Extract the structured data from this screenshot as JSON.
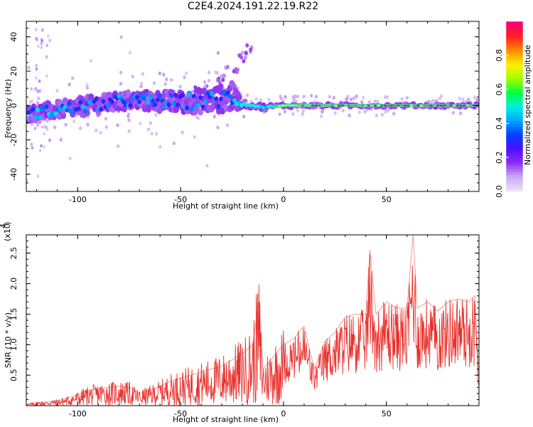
{
  "title": "C2E4.2024.191.22.19.R22",
  "colors": {
    "snr_line": "#e8322e",
    "frame": "#000000"
  },
  "chart_data": [
    {
      "type": "heatmap",
      "name": "spectrogram",
      "xlabel": "Height of straight line (km)",
      "ylabel": "Frequency (Hz)",
      "xlim": [
        -125,
        95
      ],
      "ylim": [
        -50,
        49
      ],
      "x_ticks": [
        -100,
        -50,
        0,
        50
      ],
      "y_ticks": [
        -40,
        -20,
        0,
        20,
        40
      ],
      "colorbar": {
        "label": "Normalized spectral amplitude",
        "range": [
          0,
          1
        ],
        "ticks": [
          "0.0",
          "0.2",
          "0.4",
          "0.6",
          "0.8"
        ],
        "tick_values": [
          0,
          0.2,
          0.4,
          0.6,
          0.8
        ],
        "colormap": [
          "#e8e0f8",
          "#c9a7f3",
          "#8b2cf0",
          "#4a10ff",
          "#0040ff",
          "#00a8ff",
          "#00f0e0",
          "#00ff40",
          "#a0ff00",
          "#fff000",
          "#ff9000",
          "#ff2020",
          "#ff0070"
        ]
      },
      "trend": [
        {
          "x": -125,
          "freq": -5,
          "spread": 4,
          "amp": 0.45
        },
        {
          "x": -100,
          "freq": -1,
          "spread": 5,
          "amp": 0.45
        },
        {
          "x": -75,
          "freq": 3,
          "spread": 5,
          "amp": 0.4
        },
        {
          "x": -50,
          "freq": 2,
          "spread": 6,
          "amp": 0.4
        },
        {
          "x": -35,
          "freq": 3,
          "spread": 7,
          "amp": 0.4
        },
        {
          "x": -25,
          "freq": 5,
          "spread": 8,
          "amp": 0.35
        },
        {
          "x": -20,
          "freq": 1,
          "spread": 2,
          "amp": 0.7
        },
        {
          "x": -10,
          "freq": -1,
          "spread": 2,
          "amp": 0.6
        },
        {
          "x": 0,
          "freq": 0,
          "spread": 1.5,
          "amp": 0.7
        },
        {
          "x": 10,
          "freq": 0,
          "spread": 1.2,
          "amp": 0.85
        },
        {
          "x": 50,
          "freq": 0,
          "spread": 1.2,
          "amp": 0.85
        },
        {
          "x": 95,
          "freq": 0,
          "spread": 1.2,
          "amp": 0.9
        }
      ],
      "scatter_branch": [
        {
          "x": -40,
          "freq": 10
        },
        {
          "x": -30,
          "freq": 16
        },
        {
          "x": -25,
          "freq": 22
        },
        {
          "x": -20,
          "freq": 28
        },
        {
          "x": -18,
          "freq": 33
        }
      ]
    },
    {
      "type": "line",
      "name": "snr",
      "xlabel": "Height of straight line (km)",
      "ylabel": "SNR (10 * v/v)",
      "y_multiplier": "(x10",
      "y_multiplier_exp": "4",
      "y_multiplier_close": ")",
      "xlim": [
        -125,
        95
      ],
      "ylim": [
        0,
        2.8
      ],
      "x_ticks": [
        -100,
        -50,
        0,
        50
      ],
      "y_ticks": [
        0.5,
        1.0,
        1.5,
        2.0,
        2.5
      ],
      "y_tick_labels": [
        "0.5",
        "1.0",
        "1.5",
        "2.0",
        "2.5"
      ],
      "series": [
        {
          "x": [
            -125,
            -120,
            -115,
            -110,
            -105,
            -100,
            -95,
            -90,
            -85,
            -80,
            -75,
            -70,
            -65,
            -60,
            -55,
            -50,
            -45,
            -40,
            -35,
            -30,
            -25,
            -20,
            -15,
            -12,
            -10,
            -5,
            0,
            5,
            10,
            15,
            20,
            25,
            30,
            35,
            40,
            42,
            45,
            50,
            55,
            60,
            63,
            65,
            70,
            75,
            80,
            85,
            90,
            93,
            95
          ],
          "y": [
            0.02,
            0.05,
            0.06,
            0.08,
            0.12,
            0.18,
            0.25,
            0.28,
            0.3,
            0.32,
            0.3,
            0.2,
            0.25,
            0.32,
            0.4,
            0.45,
            0.5,
            0.55,
            0.6,
            0.65,
            0.75,
            0.85,
            1.0,
            1.7,
            0.6,
            0.8,
            1.0,
            1.1,
            1.3,
            0.6,
            1.05,
            1.2,
            1.45,
            1.5,
            1.5,
            2.55,
            1.5,
            1.7,
            1.6,
            1.6,
            2.8,
            1.6,
            1.7,
            1.55,
            1.7,
            1.75,
            1.7,
            1.8,
            0.4
          ]
        }
      ]
    }
  ]
}
